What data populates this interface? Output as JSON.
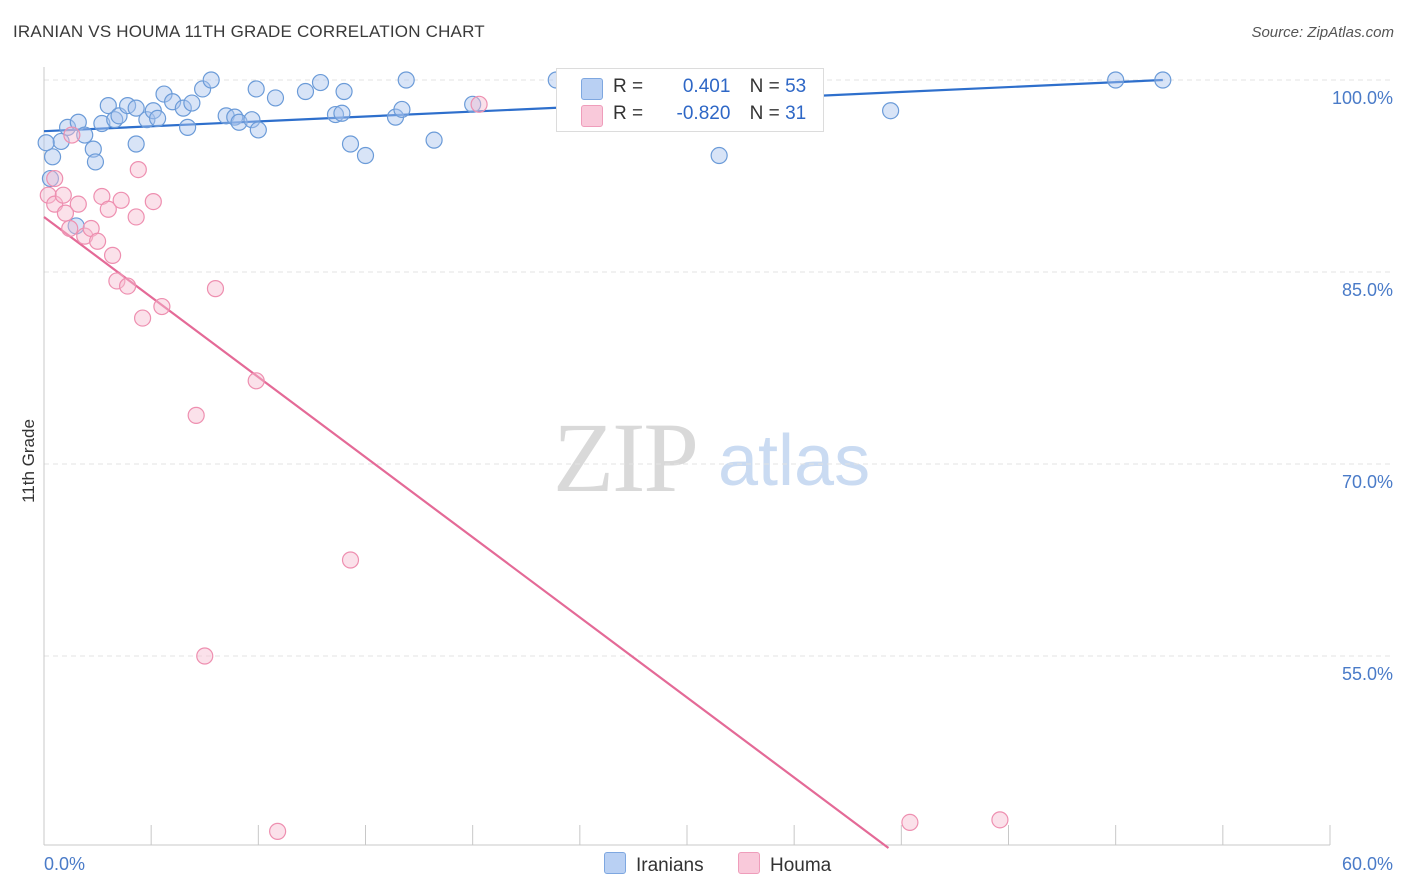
{
  "chart_data": {
    "type": "scatter",
    "title": "IRANIAN VS HOUMA 11TH GRADE CORRELATION CHART",
    "source": "Source: ZipAtlas.com",
    "ylabel": "11th Grade",
    "xlabel": "",
    "xlim": [
      0,
      60
    ],
    "ylim": [
      40,
      102
    ],
    "x_tick_labels": [
      "0.0%",
      "60.0%"
    ],
    "y_ticks": [
      {
        "value": 100,
        "label": "100.0%"
      },
      {
        "value": 85,
        "label": "85.0%"
      },
      {
        "value": 70,
        "label": "70.0%"
      },
      {
        "value": 55,
        "label": "55.0%"
      }
    ],
    "legend": {
      "rows": [
        {
          "series": "Iranians",
          "r_label": "R =",
          "r_value": "0.401",
          "n_label": "N =",
          "n_value": "53",
          "color": "#a8c4ee"
        },
        {
          "series": "Houma",
          "r_label": "R =",
          "r_value": "-0.820",
          "n_label": "N =",
          "n_value": "31",
          "color": "#f7bcd0"
        }
      ]
    },
    "series": [
      {
        "name": "Iranians",
        "color": "#6b9bd8",
        "trend": {
          "x0": 0,
          "y0": 96.0,
          "x1": 52.2,
          "y1": 100.0,
          "color": "#2e6fcc"
        },
        "points": [
          [
            0.3,
            92.3
          ],
          [
            0.4,
            94.0
          ],
          [
            0.8,
            95.2
          ],
          [
            1.1,
            96.3
          ],
          [
            1.5,
            88.6
          ],
          [
            1.6,
            96.7
          ],
          [
            1.9,
            95.7
          ],
          [
            2.3,
            94.6
          ],
          [
            2.4,
            93.6
          ],
          [
            2.7,
            96.6
          ],
          [
            3.0,
            98.0
          ],
          [
            3.3,
            96.9
          ],
          [
            3.5,
            97.2
          ],
          [
            3.9,
            98.0
          ],
          [
            4.3,
            97.8
          ],
          [
            4.3,
            95.0
          ],
          [
            4.8,
            96.9
          ],
          [
            5.1,
            97.6
          ],
          [
            5.3,
            97.0
          ],
          [
            5.6,
            98.9
          ],
          [
            6.0,
            98.3
          ],
          [
            6.5,
            97.8
          ],
          [
            6.7,
            96.3
          ],
          [
            6.9,
            98.2
          ],
          [
            7.4,
            99.3
          ],
          [
            7.8,
            100.0
          ],
          [
            8.5,
            97.2
          ],
          [
            8.9,
            97.1
          ],
          [
            9.1,
            96.7
          ],
          [
            9.7,
            96.9
          ],
          [
            9.9,
            99.3
          ],
          [
            10.0,
            96.1
          ],
          [
            10.8,
            98.6
          ],
          [
            12.2,
            99.1
          ],
          [
            12.9,
            99.8
          ],
          [
            13.6,
            97.3
          ],
          [
            14.0,
            99.1
          ],
          [
            13.9,
            97.4
          ],
          [
            14.3,
            95.0
          ],
          [
            15.0,
            94.1
          ],
          [
            16.4,
            97.1
          ],
          [
            16.7,
            97.7
          ],
          [
            16.9,
            100.0
          ],
          [
            18.2,
            95.3
          ],
          [
            20.0,
            98.1
          ],
          [
            23.9,
            100.0
          ],
          [
            35.1,
            100.0
          ],
          [
            39.5,
            97.6
          ],
          [
            35.6,
            100.0
          ],
          [
            31.5,
            94.1
          ],
          [
            50.0,
            100.0
          ],
          [
            52.2,
            100.0
          ],
          [
            0.1,
            95.1
          ]
        ]
      },
      {
        "name": "Houma",
        "color": "#ee8fb0",
        "trend": {
          "x0": 0,
          "y0": 89.3,
          "x1": 39.4,
          "y1": 40.0,
          "color": "#e46a97"
        },
        "points": [
          [
            0.2,
            91.0
          ],
          [
            0.5,
            92.3
          ],
          [
            0.5,
            90.3
          ],
          [
            0.9,
            91.0
          ],
          [
            1.0,
            89.6
          ],
          [
            1.2,
            88.4
          ],
          [
            1.3,
            95.7
          ],
          [
            1.6,
            90.3
          ],
          [
            1.9,
            87.8
          ],
          [
            2.2,
            88.4
          ],
          [
            2.5,
            87.4
          ],
          [
            2.7,
            90.9
          ],
          [
            3.0,
            89.9
          ],
          [
            3.2,
            86.3
          ],
          [
            3.4,
            84.3
          ],
          [
            3.6,
            90.6
          ],
          [
            3.9,
            83.9
          ],
          [
            4.3,
            89.3
          ],
          [
            4.4,
            93.0
          ],
          [
            4.6,
            81.4
          ],
          [
            5.1,
            90.5
          ],
          [
            5.5,
            82.3
          ],
          [
            7.1,
            73.8
          ],
          [
            7.5,
            55.0
          ],
          [
            8.0,
            83.7
          ],
          [
            9.9,
            76.5
          ],
          [
            10.9,
            41.3
          ],
          [
            14.3,
            62.5
          ],
          [
            20.3,
            98.1
          ],
          [
            40.4,
            42.0
          ],
          [
            44.6,
            42.2
          ]
        ]
      }
    ]
  },
  "watermark": {
    "zip": "ZIP",
    "atlas": "atlas"
  }
}
